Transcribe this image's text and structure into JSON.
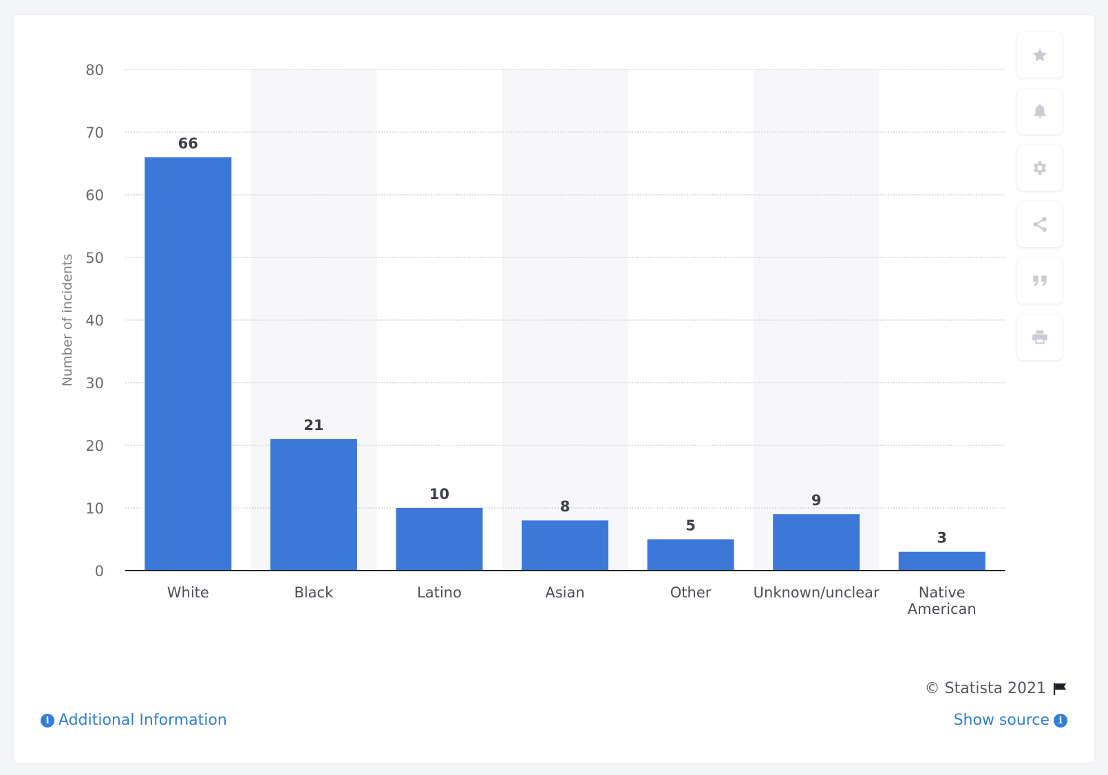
{
  "chart_data": {
    "type": "bar",
    "categories": [
      "White",
      "Black",
      "Latino",
      "Asian",
      "Other",
      "Unknown/unclear",
      "Native American"
    ],
    "values": [
      66,
      21,
      10,
      8,
      5,
      9,
      3
    ],
    "ylabel": "Number of incidents",
    "xlabel": "",
    "ylim": [
      0,
      80
    ],
    "yticks": [
      0,
      10,
      20,
      30,
      40,
      50,
      60,
      70,
      80
    ],
    "grid": true,
    "bar_color": "#3c78d8",
    "alt_band_color": "#f7f7f9"
  },
  "toolbar": {
    "buttons": [
      {
        "icon": "star-icon"
      },
      {
        "icon": "bell-icon"
      },
      {
        "icon": "gear-icon"
      },
      {
        "icon": "share-icon"
      },
      {
        "icon": "quote-icon"
      },
      {
        "icon": "print-icon"
      }
    ]
  },
  "footer": {
    "copyright": "© Statista 2021",
    "additional_info": "Additional Information",
    "show_source": "Show source"
  }
}
